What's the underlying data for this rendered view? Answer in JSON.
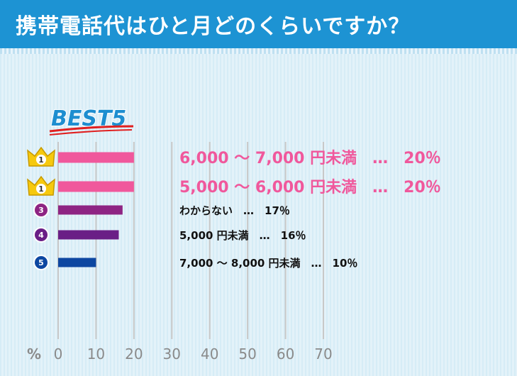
{
  "title": "携帯電話代はひと月どのくらいですか？",
  "best_label": "BEST5",
  "colors": {
    "title_bg": "#1d93d3",
    "rank1": "#f0589c",
    "rank3": "#8e2483",
    "rank4": "#6a1f86",
    "rank5": "#0d47a1",
    "crown": "#f6c90e",
    "grid": "#c8c8c8"
  },
  "chart_data": {
    "type": "bar",
    "orientation": "horizontal",
    "title": "携帯電話代はひと月どのくらいですか？",
    "x_unit": "%",
    "xlim": [
      0,
      70
    ],
    "xticks": [
      0,
      10,
      20,
      30,
      40,
      50,
      60,
      70
    ],
    "grid": true,
    "series": [
      {
        "values": [
          20,
          20,
          17,
          16,
          10
        ]
      }
    ],
    "ranks": [
      "1",
      "1",
      "3",
      "4",
      "5"
    ],
    "rank_icons": [
      "crown-icon",
      "crown-icon",
      "circle-3-icon",
      "circle-4-icon",
      "circle-5-icon"
    ],
    "bar_colors": [
      "#f0589c",
      "#f0589c",
      "#8e2483",
      "#6a1f86",
      "#0d47a1"
    ],
    "labels": [
      "6,000 ～ 7,000 円未満　…　20％",
      "5,000 ～ 6,000 円未満　…　20％",
      "わからない　…　17％",
      "5,000 円未満　…　16％",
      "7,000 ～ 8,000 円未満　…　10％"
    ]
  }
}
